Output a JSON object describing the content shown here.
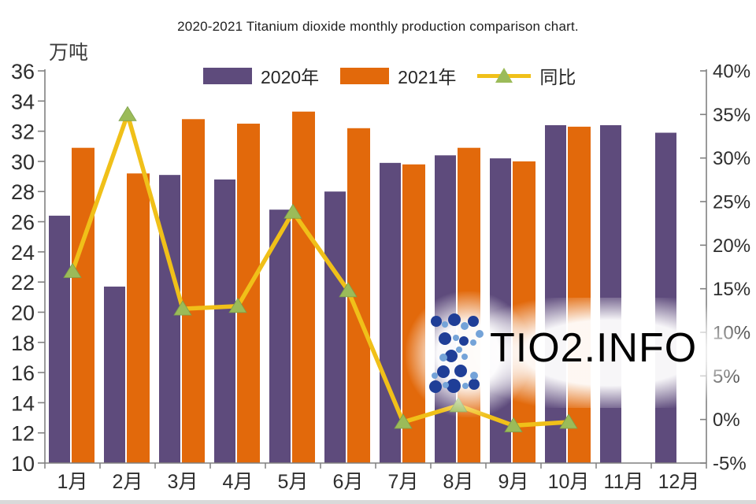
{
  "title": "2020-2021 Titanium dioxide monthly production comparison chart.",
  "unit_label": "万吨",
  "watermark": {
    "text": "TIO2.INFO"
  },
  "legend": {
    "items": [
      {
        "label": "2020年",
        "swatch_color": "#5e4b7c"
      },
      {
        "label": "2021年",
        "swatch_color": "#e2690b"
      },
      {
        "label": "同比",
        "line_color": "#f0c019",
        "marker_color": "#9bbb59"
      }
    ]
  },
  "colors": {
    "bar_2020": "#5e4b7c",
    "bar_2021": "#e2690b",
    "line_yoy": "#f0c019",
    "marker_yoy": "#9bbb59",
    "axis": "#808080",
    "tick_text": "#2e2e2e"
  },
  "chart_data": {
    "type": "bar",
    "title": "2020-2021 Titanium dioxide monthly production comparison chart.",
    "categories": [
      "1月",
      "2月",
      "3月",
      "4月",
      "5月",
      "6月",
      "7月",
      "8月",
      "9月",
      "10月",
      "11月",
      "12月"
    ],
    "series": [
      {
        "name": "2020年",
        "type": "bar",
        "axis": "left",
        "color": "#5e4b7c",
        "values": [
          26.4,
          21.7,
          29.1,
          28.8,
          26.8,
          28.0,
          29.9,
          30.4,
          30.2,
          32.4,
          32.4,
          31.9
        ]
      },
      {
        "name": "2021年",
        "type": "bar",
        "axis": "left",
        "color": "#e2690b",
        "values": [
          30.9,
          29.2,
          32.8,
          32.5,
          33.3,
          32.2,
          29.8,
          30.9,
          30.0,
          32.3,
          null,
          null
        ]
      },
      {
        "name": "同比",
        "type": "line",
        "axis": "right",
        "color": "#f0c019",
        "marker": "triangle",
        "marker_color": "#9bbb59",
        "values": [
          17.0,
          35.0,
          12.7,
          13.0,
          23.8,
          14.8,
          -0.3,
          1.6,
          -0.7,
          -0.3,
          null,
          null
        ]
      }
    ],
    "left_axis": {
      "label": "万吨",
      "min": 10,
      "max": 36,
      "step": 2,
      "ticks": [
        36,
        34,
        32,
        30,
        28,
        26,
        24,
        22,
        20,
        18,
        16,
        14,
        12,
        10
      ]
    },
    "right_axis": {
      "label": "同比 %",
      "min": -5,
      "max": 40,
      "step": 5,
      "ticks": [
        "40%",
        "35%",
        "30%",
        "25%",
        "20%",
        "15%",
        "10%",
        "5%",
        "0%",
        "-5%"
      ],
      "tick_values": [
        40,
        35,
        30,
        25,
        20,
        15,
        10,
        5,
        0,
        -5
      ]
    },
    "xlabel": "",
    "ylabel": "万吨",
    "grid": false,
    "legend_position": "top"
  }
}
